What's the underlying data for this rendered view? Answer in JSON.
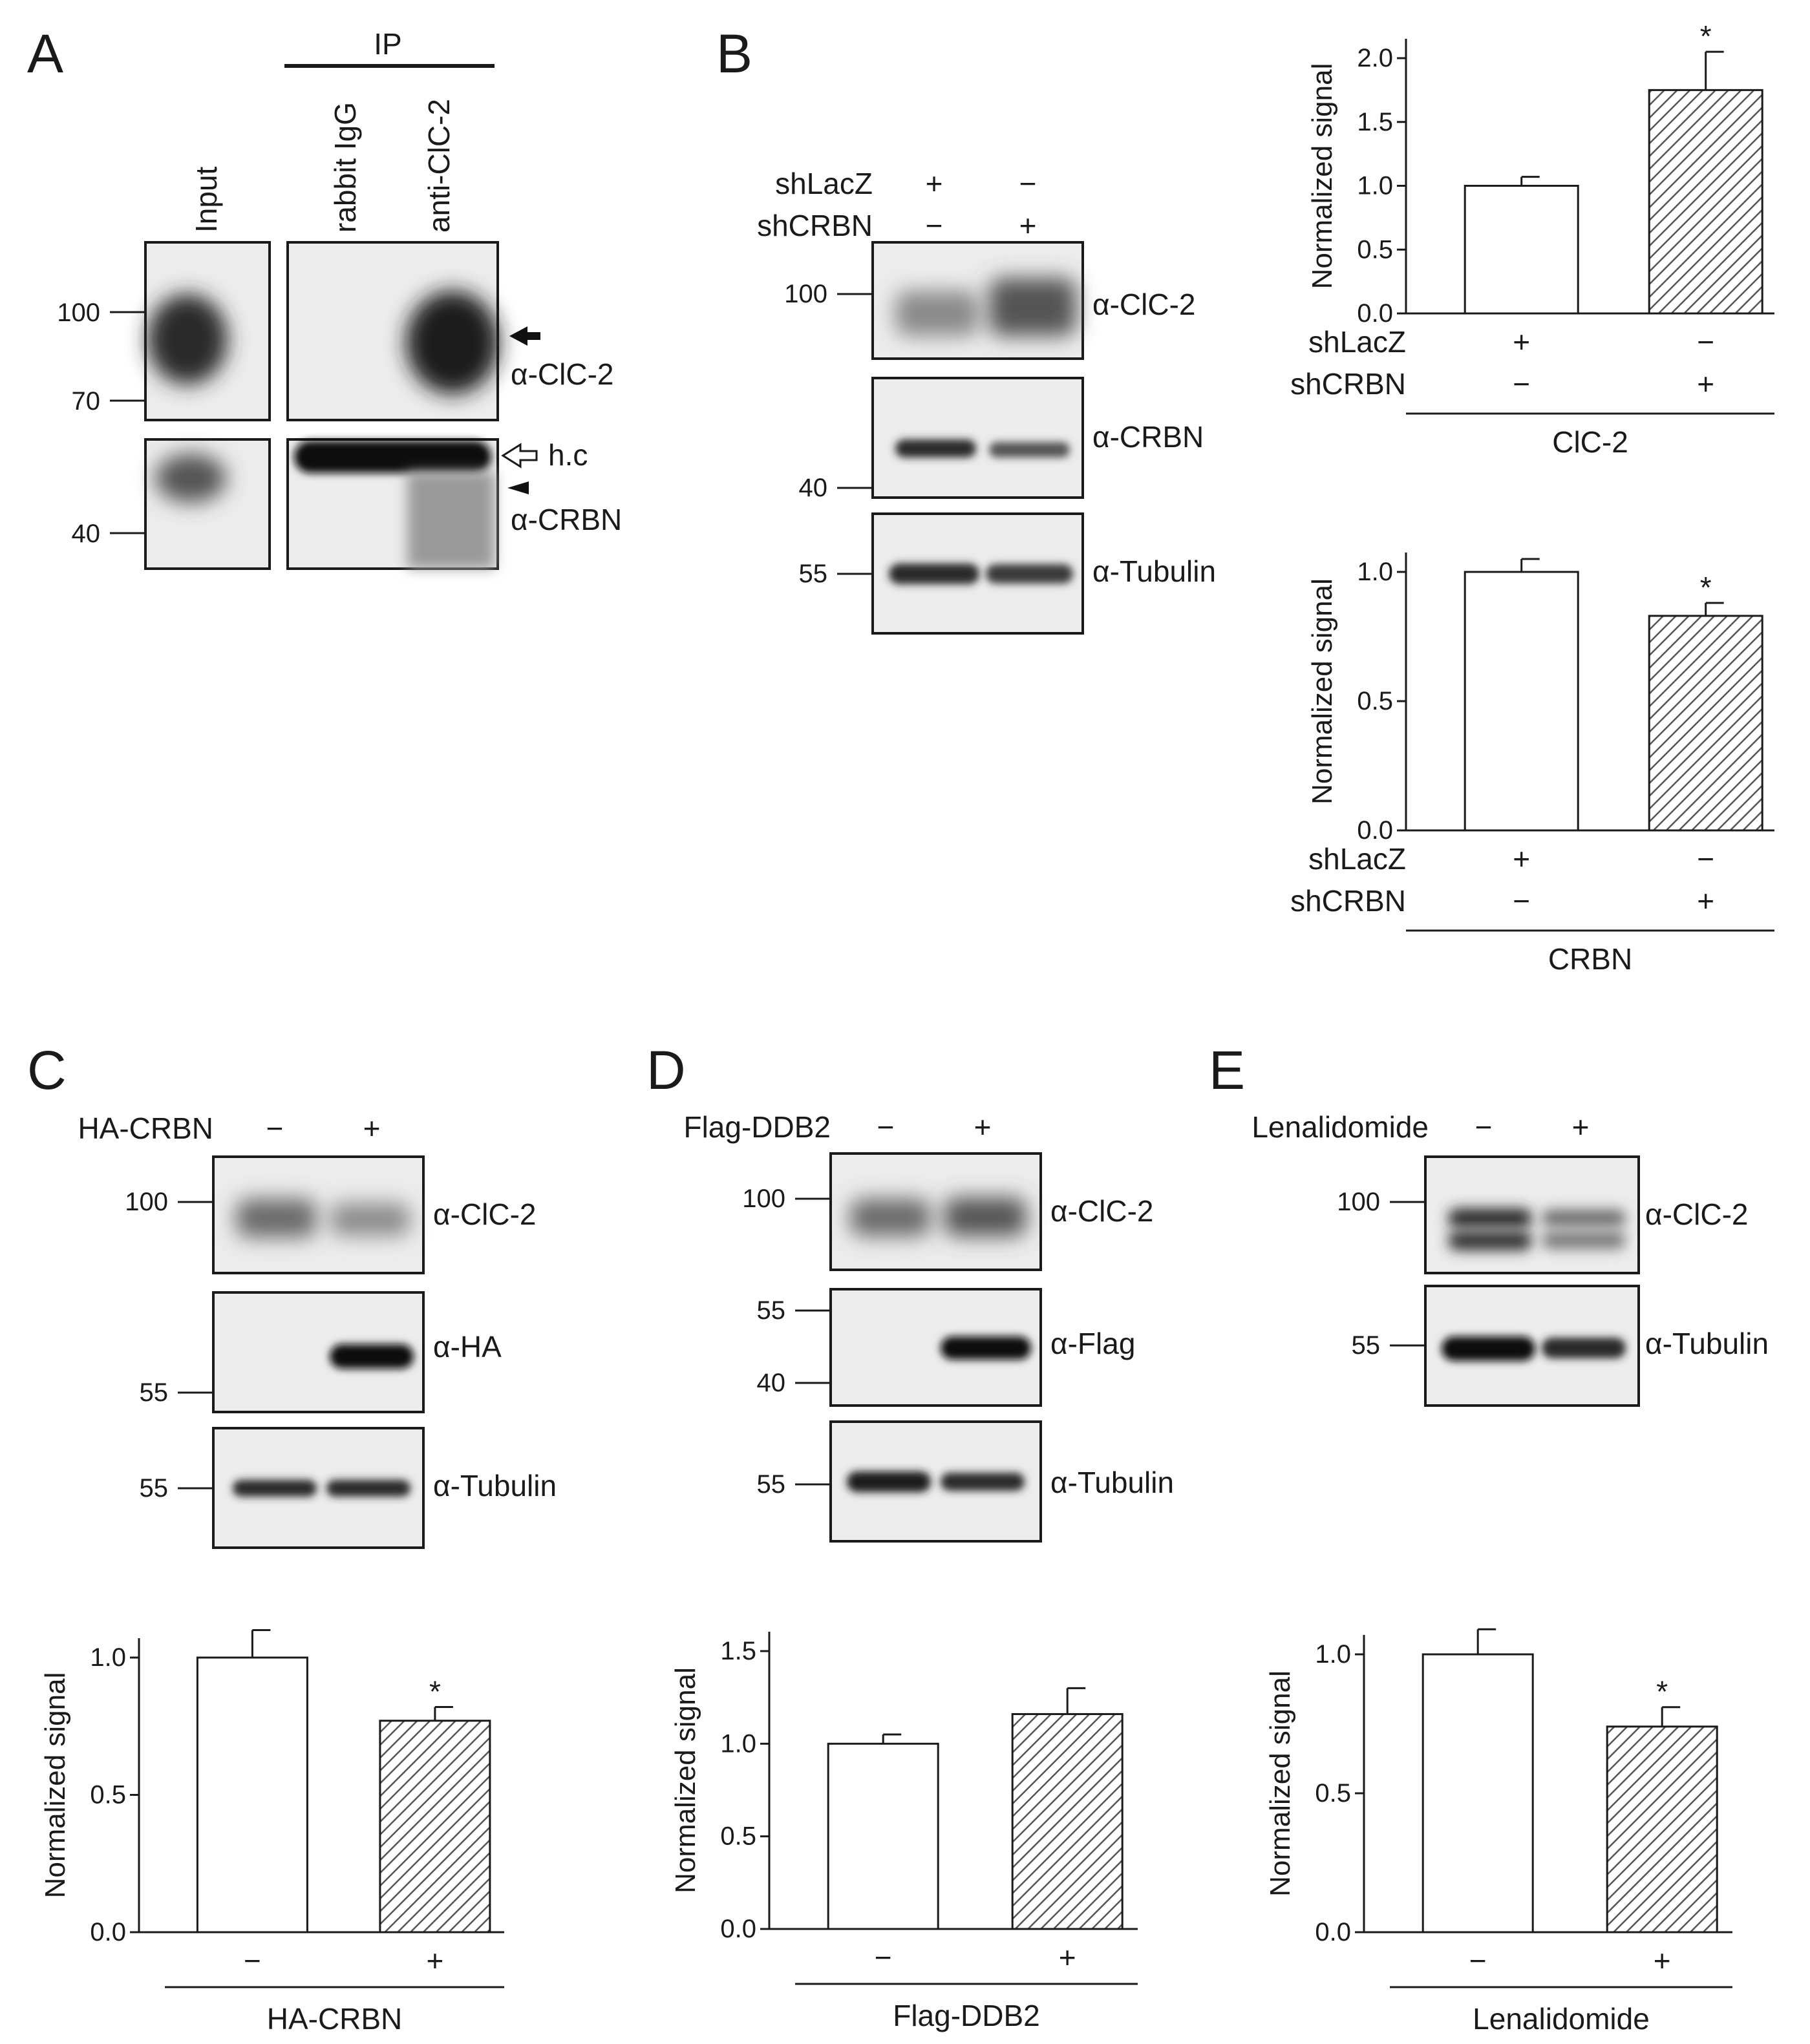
{
  "colors": {
    "ink": "#1a1a1a",
    "band": "#1e1e1e",
    "membrane": "#ececec",
    "hatch": "#555555"
  },
  "panels": {
    "A": {
      "label": "A",
      "ip_label": "IP",
      "lanes": [
        "Input",
        "rabbit IgG",
        "anti-ClC-2"
      ],
      "mw_top": [
        "100",
        "70"
      ],
      "mw_bottom": [
        "40"
      ],
      "antibodies": [
        "α-ClC-2",
        "α-CRBN"
      ],
      "hc_label": "h.c"
    },
    "B": {
      "label": "B",
      "rows": [
        {
          "name": "shLacZ",
          "signs": [
            "+",
            "−"
          ]
        },
        {
          "name": "shCRBN",
          "signs": [
            "−",
            "+"
          ]
        }
      ],
      "mw": [
        "100",
        "40",
        "55"
      ],
      "antibodies": [
        "α-ClC-2",
        "α-CRBN",
        "α-Tubulin"
      ]
    },
    "C": {
      "label": "C",
      "treatment": "HA-CRBN",
      "signs": [
        "−",
        "+"
      ],
      "mw": [
        "100",
        "55",
        "55"
      ],
      "antibodies": [
        "α-ClC-2",
        "α-HA",
        "α-Tubulin"
      ]
    },
    "D": {
      "label": "D",
      "treatment": "Flag-DDB2",
      "signs": [
        "−",
        "+"
      ],
      "mw": [
        "100",
        "55",
        "40",
        "55"
      ],
      "antibodies": [
        "α-ClC-2",
        "α-Flag",
        "α-Tubulin"
      ]
    },
    "E": {
      "label": "E",
      "treatment": "Lenalidomide",
      "signs": [
        "−",
        "+"
      ],
      "mw": [
        "100",
        "55"
      ],
      "antibodies": [
        "α-ClC-2",
        "α-Tubulin"
      ]
    }
  },
  "chart_data": [
    {
      "id": "B-ClC2",
      "type": "bar",
      "ylabel": "Normalized signal",
      "ylim": [
        0,
        2.0
      ],
      "yticks": [
        "0.0",
        "0.5",
        "1.0",
        "1.5",
        "2.0"
      ],
      "categories": [
        "shLacZ +/shCRBN −",
        "shLacZ −/shCRBN +"
      ],
      "values": [
        1.0,
        1.75
      ],
      "errors": [
        0.07,
        0.3
      ],
      "significance": [
        "",
        "*"
      ],
      "condition_rows": [
        {
          "name": "shLacZ",
          "signs": [
            "+",
            "−"
          ]
        },
        {
          "name": "shCRBN",
          "signs": [
            "−",
            "+"
          ]
        }
      ],
      "group_label": "ClC-2"
    },
    {
      "id": "B-CRBN",
      "type": "bar",
      "ylabel": "Normalized signal",
      "ylim": [
        0,
        1.0
      ],
      "yticks": [
        "0.0",
        "0.5",
        "1.0"
      ],
      "categories": [
        "shLacZ +/shCRBN −",
        "shLacZ −/shCRBN +"
      ],
      "values": [
        1.0,
        0.83
      ],
      "errors": [
        0.05,
        0.05
      ],
      "significance": [
        "",
        "*"
      ],
      "condition_rows": [
        {
          "name": "shLacZ",
          "signs": [
            "+",
            "−"
          ]
        },
        {
          "name": "shCRBN",
          "signs": [
            "−",
            "+"
          ]
        }
      ],
      "group_label": "CRBN"
    },
    {
      "id": "C",
      "type": "bar",
      "ylabel": "Normalized signal",
      "ylim": [
        0,
        1.0
      ],
      "yticks": [
        "0.0",
        "0.5",
        "1.0"
      ],
      "categories": [
        "−",
        "+"
      ],
      "values": [
        1.0,
        0.77
      ],
      "errors": [
        0.1,
        0.05
      ],
      "significance": [
        "",
        "*"
      ],
      "group_label": "HA-CRBN"
    },
    {
      "id": "D",
      "type": "bar",
      "ylabel": "Normalized signal",
      "ylim": [
        0,
        1.5
      ],
      "yticks": [
        "0.0",
        "0.5",
        "1.0",
        "1.5"
      ],
      "categories": [
        "−",
        "+"
      ],
      "values": [
        1.0,
        1.16
      ],
      "errors": [
        0.05,
        0.14
      ],
      "significance": [
        "",
        ""
      ],
      "group_label": "Flag-DDB2"
    },
    {
      "id": "E",
      "type": "bar",
      "ylabel": "Normalized signal",
      "ylim": [
        0,
        1.0
      ],
      "yticks": [
        "0.0",
        "0.5",
        "1.0"
      ],
      "categories": [
        "−",
        "+"
      ],
      "values": [
        1.0,
        0.74
      ],
      "errors": [
        0.09,
        0.07
      ],
      "significance": [
        "",
        "*"
      ],
      "group_label": "Lenalidomide"
    }
  ]
}
